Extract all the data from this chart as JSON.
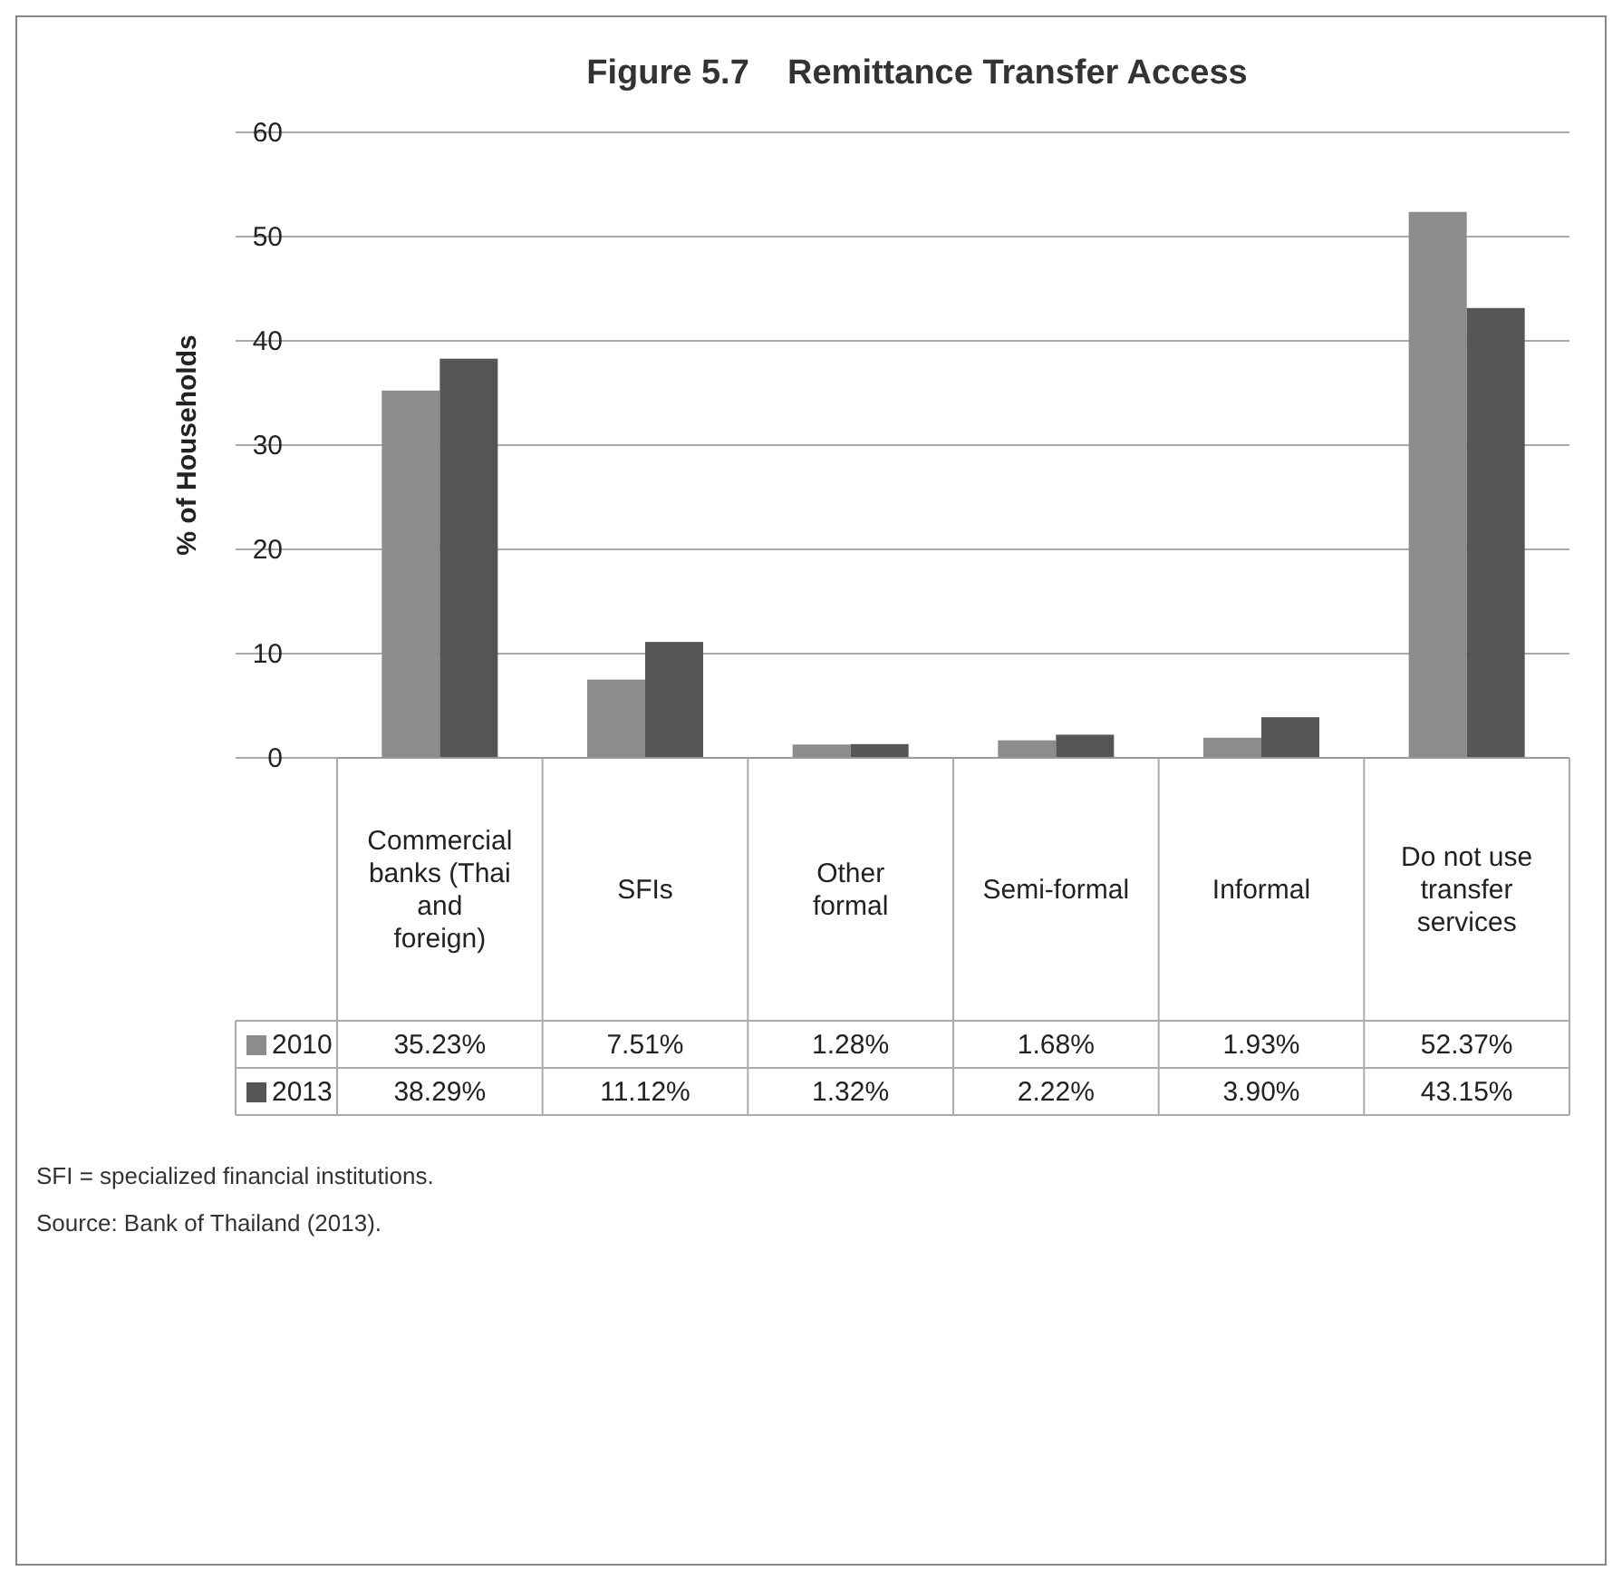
{
  "chart_data": {
    "type": "bar",
    "title": "Figure 5.7    Remittance Transfer Access",
    "ylabel": "% of Households",
    "categories": [
      "Commercial banks (Thai and foreign)",
      "SFIs",
      "Other formal",
      "Semi-formal",
      "Informal",
      "Do not use transfer services"
    ],
    "series": [
      {
        "name": "2010",
        "color": "#8c8c8c",
        "values": [
          35.23,
          7.51,
          1.28,
          1.68,
          1.93,
          52.37
        ],
        "value_labels": [
          "35.23%",
          "7.51%",
          "1.28%",
          "1.68%",
          "1.93%",
          "52.37%"
        ]
      },
      {
        "name": "2013",
        "color": "#555555",
        "values": [
          38.29,
          11.12,
          1.32,
          2.22,
          3.9,
          43.15
        ],
        "value_labels": [
          "38.29%",
          "11.12%",
          "1.32%",
          "2.22%",
          "3.90%",
          "43.15%"
        ]
      }
    ],
    "ylim": [
      0,
      60
    ],
    "yticks": [
      0,
      10,
      20,
      30,
      40,
      50,
      60
    ],
    "grid": "y",
    "legend": "bottom",
    "annotations": [
      "SFI = specialized financial institutions.",
      "Source: Bank of Thailand (2013)."
    ]
  }
}
